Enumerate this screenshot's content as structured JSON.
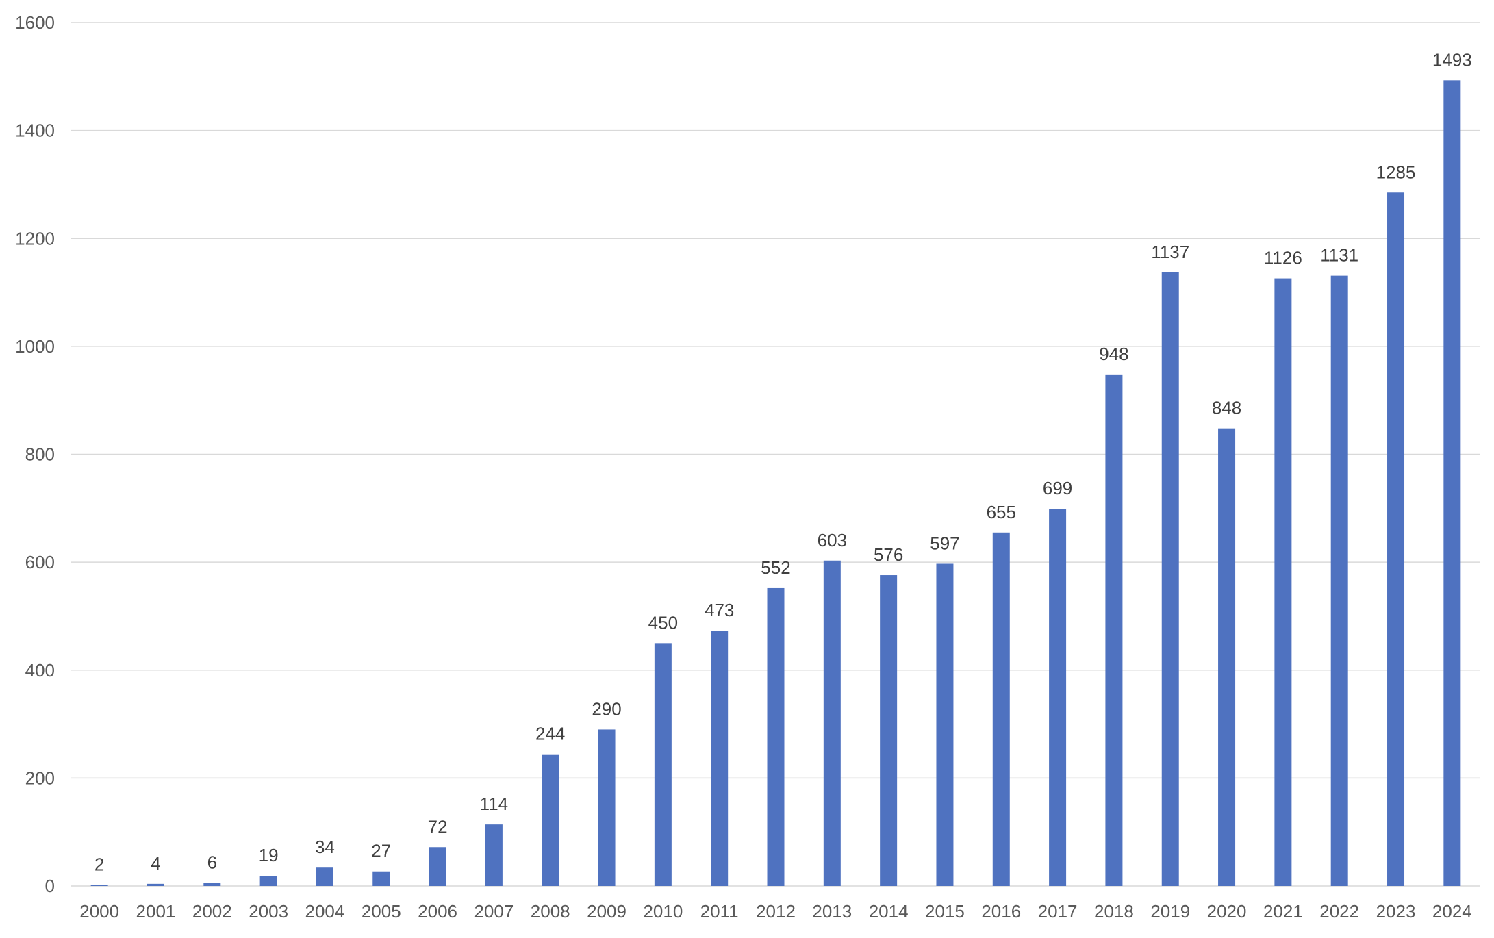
{
  "chart_data": {
    "type": "bar",
    "title": "",
    "xlabel": "",
    "ylabel": "",
    "categories": [
      "2000",
      "2001",
      "2002",
      "2003",
      "2004",
      "2005",
      "2006",
      "2007",
      "2008",
      "2009",
      "2010",
      "2011",
      "2012",
      "2013",
      "2014",
      "2015",
      "2016",
      "2017",
      "2018",
      "2019",
      "2020",
      "2021",
      "2022",
      "2023",
      "2024"
    ],
    "values": [
      2,
      4,
      6,
      19,
      34,
      27,
      72,
      114,
      244,
      290,
      450,
      473,
      552,
      603,
      576,
      597,
      655,
      699,
      948,
      1137,
      848,
      1126,
      1131,
      1285,
      1493
    ],
    "ylim": [
      0,
      1600
    ],
    "yticks": [
      0,
      200,
      400,
      600,
      800,
      1000,
      1200,
      1400,
      1600
    ],
    "grid": true,
    "legend": "none",
    "data_labels": true,
    "bar_color": "#4f72c0",
    "grid_color": "#d9d9d9"
  }
}
